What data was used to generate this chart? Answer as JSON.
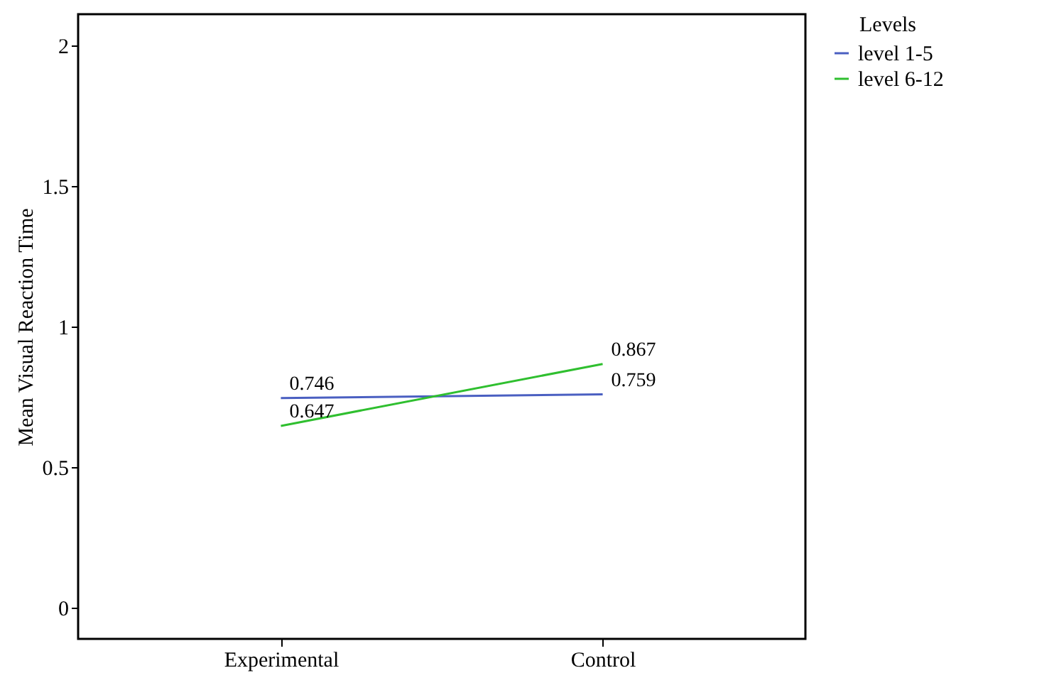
{
  "chart_data": {
    "type": "line",
    "xlabel": null,
    "ylabel": "Mean Visual Reaction Time",
    "legend_title": "Levels",
    "categories": [
      "Experimental",
      "Control"
    ],
    "series": [
      {
        "name": "level 1-5",
        "color": "#4a5fc1",
        "values": [
          0.746,
          0.759
        ]
      },
      {
        "name": "level 6-12",
        "color": "#2fbf2f",
        "values": [
          0.647,
          0.867
        ]
      }
    ],
    "ylim": [
      -0.11,
      2.11
    ],
    "yticks": [
      0,
      0.5,
      1,
      1.5,
      2
    ],
    "grid": false,
    "legend": "top right",
    "data_labels": true,
    "marker": "none",
    "line_style": "solid"
  }
}
